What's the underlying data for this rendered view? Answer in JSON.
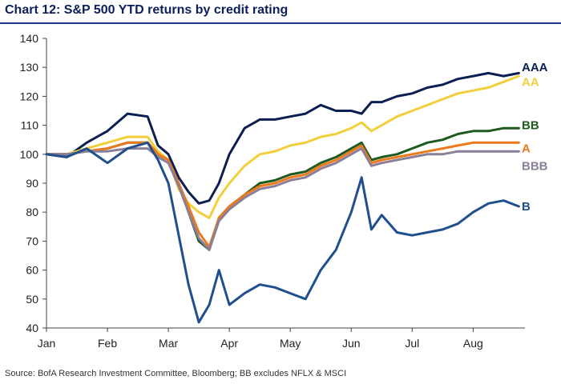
{
  "chart_data": {
    "type": "line",
    "title": "Chart 12: S&P 500 YTD returns by credit rating",
    "source": "Source: BofA Research Investment Committee, Bloomberg; BB excludes NFLX & MSCI",
    "xlabel": "",
    "ylabel": "",
    "x_tick_labels": [
      "Jan",
      "Feb",
      "Mar",
      "Apr",
      "May",
      "Jun",
      "Jul",
      "Aug"
    ],
    "x_tick_months": [
      0,
      1,
      2,
      3,
      4,
      5,
      6,
      7
    ],
    "ylim": [
      40,
      140
    ],
    "y_ticks": [
      40,
      50,
      60,
      70,
      80,
      90,
      100,
      110,
      120,
      130,
      140
    ],
    "xlim_months": [
      0,
      7.85
    ],
    "grid": false,
    "x": [
      0,
      0.33,
      0.66,
      1.0,
      1.33,
      1.66,
      1.83,
      2.0,
      2.17,
      2.33,
      2.5,
      2.67,
      2.83,
      3.0,
      3.25,
      3.5,
      3.75,
      4.0,
      4.25,
      4.5,
      4.75,
      5.0,
      5.17,
      5.33,
      5.5,
      5.75,
      6.0,
      6.25,
      6.5,
      6.75,
      7.0,
      7.25,
      7.5,
      7.75
    ],
    "series": [
      {
        "name": "AAA",
        "color": "#0b1f52",
        "values": [
          100,
          99,
          104,
          108,
          114,
          113,
          103,
          100,
          92,
          87,
          83,
          84,
          90,
          100,
          109,
          112,
          112,
          113,
          114,
          117,
          115,
          115,
          114,
          118,
          118,
          120,
          121,
          123,
          124,
          126,
          127,
          128,
          127,
          128
        ]
      },
      {
        "name": "AA",
        "color": "#f2cf3a",
        "values": [
          100,
          100,
          102,
          104,
          106,
          106,
          101,
          98,
          88,
          83,
          80,
          78,
          85,
          90,
          96,
          100,
          101,
          103,
          104,
          106,
          107,
          109,
          111,
          108,
          110,
          113,
          115,
          117,
          119,
          121,
          122,
          123,
          125,
          127
        ]
      },
      {
        "name": "BB",
        "color": "#1e5a1e",
        "values": [
          100,
          100,
          101,
          102,
          104,
          104,
          100,
          98,
          90,
          80,
          70,
          67,
          78,
          82,
          86,
          90,
          91,
          93,
          94,
          97,
          99,
          102,
          104,
          98,
          99,
          100,
          102,
          104,
          105,
          107,
          108,
          108,
          109,
          109
        ]
      },
      {
        "name": "A",
        "color": "#ec7a1c",
        "values": [
          100,
          100,
          101,
          102,
          104,
          104,
          100,
          98,
          90,
          82,
          73,
          68,
          78,
          82,
          86,
          89,
          90,
          92,
          93,
          96,
          98,
          101,
          103,
          97,
          98,
          99,
          100,
          101,
          102,
          103,
          104,
          104,
          104,
          104
        ]
      },
      {
        "name": "BBB",
        "color": "#8a7f99",
        "values": [
          100,
          100,
          101,
          101,
          102,
          102,
          99,
          97,
          89,
          80,
          71,
          67,
          77,
          81,
          85,
          88,
          89,
          91,
          92,
          95,
          97,
          100,
          102,
          96,
          97,
          98,
          99,
          100,
          100,
          101,
          101,
          101,
          101,
          101
        ]
      },
      {
        "name": "B",
        "color": "#1f4f8f",
        "values": [
          100,
          99,
          102,
          97,
          102,
          104,
          98,
          90,
          72,
          55,
          42,
          48,
          60,
          48,
          52,
          55,
          54,
          52,
          50,
          60,
          67,
          80,
          92,
          74,
          79,
          73,
          72,
          73,
          74,
          76,
          80,
          83,
          84,
          82
        ]
      }
    ],
    "end_labels": [
      "AAA",
      "AA",
      "BB",
      "A",
      "BBB",
      "B"
    ]
  }
}
